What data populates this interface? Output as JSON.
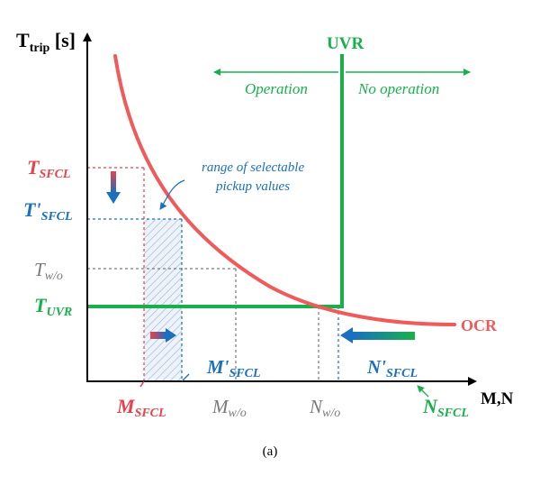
{
  "colors": {
    "axis": "#000000",
    "ocr": "#f05a5a",
    "uvr": "#19b04b",
    "sfcl_red": "#e8414b",
    "sfcl_blue": "#1a6fc0",
    "gray": "#7a7a7a",
    "hatch": "#9bbad8"
  },
  "axes": {
    "y_label": "T",
    "y_label_sub": "trip",
    "y_label_unit": " [s]",
    "x_label": "M,N"
  },
  "curves": {
    "ocr_label": "OCR",
    "uvr_label": "UVR"
  },
  "regions": {
    "operation": "Operation",
    "no_operation": "No operation"
  },
  "annotation": {
    "line1": "range of selectable",
    "line2": "pickup values"
  },
  "y_ticks": {
    "t_sfcl": {
      "main": "T",
      "sub": "SFCL"
    },
    "t_prime_sfcl": {
      "main": "T'",
      "sub": "SFCL"
    },
    "t_wo": {
      "main": "T",
      "sub": "w/o"
    },
    "t_uvr": {
      "main": "T",
      "sub": "UVR"
    }
  },
  "x_ticks": {
    "m_sfcl": {
      "main": "M",
      "sub": "SFCL"
    },
    "m_prime_sfcl": {
      "main": "M'",
      "sub": "SFCL"
    },
    "m_wo": {
      "main": "M",
      "sub": "w/o"
    },
    "n_wo": {
      "main": "N",
      "sub": "w/o"
    },
    "n_prime_sfcl": {
      "main": "N'",
      "sub": "SFCL"
    },
    "n_sfcl": {
      "main": "N",
      "sub": "SFCL"
    }
  },
  "caption": "(a)"
}
